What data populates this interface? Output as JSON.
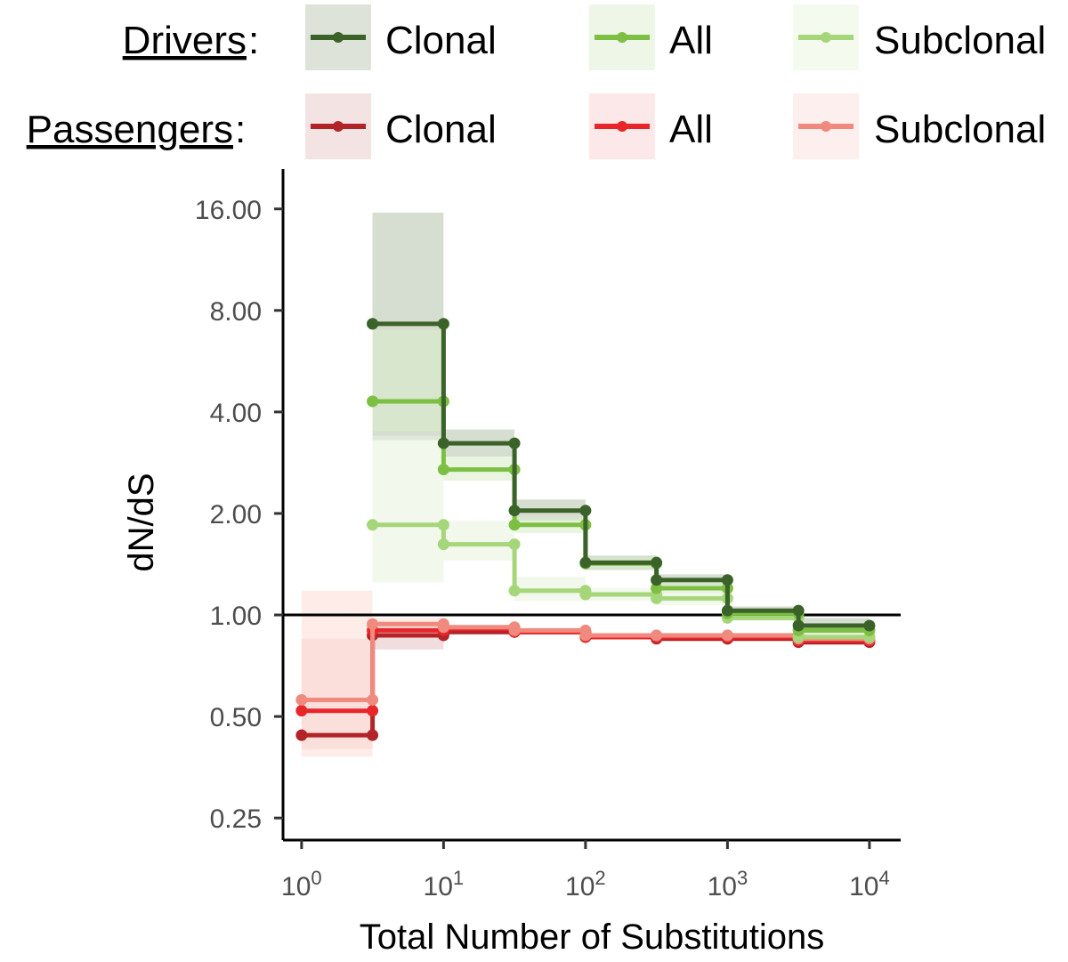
{
  "chart_data": {
    "type": "line",
    "step": true,
    "log_x": true,
    "log_y": true,
    "xlabel": "Total Number of Substitutions",
    "ylabel": "dN/dS",
    "x_ticks": [
      {
        "value": 1,
        "base": "10",
        "exp": "0"
      },
      {
        "value": 10,
        "base": "10",
        "exp": "1"
      },
      {
        "value": 100,
        "base": "10",
        "exp": "2"
      },
      {
        "value": 1000,
        "base": "10",
        "exp": "3"
      },
      {
        "value": 10000,
        "base": "10",
        "exp": "4"
      }
    ],
    "y_ticks": [
      {
        "value": 0.25,
        "label": "0.25"
      },
      {
        "value": 0.5,
        "label": "0.50"
      },
      {
        "value": 1,
        "label": "1.00"
      },
      {
        "value": 2,
        "label": "2.00"
      },
      {
        "value": 4,
        "label": "4.00"
      },
      {
        "value": 8,
        "label": "8.00"
      },
      {
        "value": 16,
        "label": "16.00"
      }
    ],
    "xlim": [
      0.74,
      16600
    ],
    "ylim": [
      0.215,
      21
    ],
    "reference_line_y": 1.0,
    "legend": {
      "drivers_title": "Drivers",
      "passengers_title": "Passengers",
      "colon": ":",
      "columns": [
        "Clonal",
        "All",
        "Subclonal"
      ]
    },
    "series": [
      {
        "name": "Drivers Clonal",
        "group": "Drivers",
        "subset": "Clonal",
        "color": "#3b6329",
        "band_color": "#b5c2ac",
        "points": [
          [
            3.16,
            7.3
          ],
          [
            10,
            7.3
          ],
          [
            10,
            3.23
          ],
          [
            31.6,
            3.23
          ],
          [
            31.6,
            2.04
          ],
          [
            100,
            2.04
          ],
          [
            100,
            1.43
          ],
          [
            316,
            1.43
          ],
          [
            316,
            1.27
          ],
          [
            1000,
            1.27
          ],
          [
            1000,
            1.03
          ],
          [
            3162,
            1.03
          ],
          [
            3162,
            0.93
          ],
          [
            10000,
            0.93
          ]
        ],
        "bands": [
          [
            3.16,
            10,
            3.3,
            15.6
          ],
          [
            10,
            31.6,
            2.95,
            3.55
          ],
          [
            31.6,
            100,
            1.9,
            2.2
          ],
          [
            100,
            316,
            1.36,
            1.5
          ],
          [
            316,
            1000,
            1.22,
            1.32
          ],
          [
            1000,
            3162,
            1.0,
            1.06
          ],
          [
            3162,
            10000,
            0.88,
            0.98
          ]
        ]
      },
      {
        "name": "Drivers All",
        "group": "Drivers",
        "subset": "All",
        "color": "#7cbf42",
        "band_color": "#d9ecc9",
        "points": [
          [
            3.16,
            4.3
          ],
          [
            10,
            4.3
          ],
          [
            10,
            2.7
          ],
          [
            31.6,
            2.7
          ],
          [
            31.6,
            1.85
          ],
          [
            100,
            1.85
          ],
          [
            100,
            1.42
          ],
          [
            316,
            1.42
          ],
          [
            316,
            1.2
          ],
          [
            1000,
            1.2
          ],
          [
            1000,
            1.01
          ],
          [
            3162,
            1.01
          ],
          [
            3162,
            0.9
          ],
          [
            10000,
            0.9
          ]
        ],
        "bands": [
          [
            3.16,
            10,
            3.5,
            7.0
          ],
          [
            10,
            31.6,
            2.5,
            2.95
          ],
          [
            31.6,
            100,
            1.75,
            1.95
          ],
          [
            100,
            316,
            1.37,
            1.48
          ],
          [
            316,
            1000,
            1.16,
            1.25
          ],
          [
            1000,
            3162,
            0.98,
            1.04
          ],
          [
            3162,
            10000,
            0.87,
            0.94
          ]
        ]
      },
      {
        "name": "Drivers Subclonal",
        "group": "Drivers",
        "subset": "Subclonal",
        "color": "#a6d67a",
        "band_color": "#e8f3dc",
        "points": [
          [
            3.16,
            1.85
          ],
          [
            10,
            1.85
          ],
          [
            10,
            1.62
          ],
          [
            31.6,
            1.62
          ],
          [
            31.6,
            1.18
          ],
          [
            100,
            1.18
          ],
          [
            100,
            1.15
          ],
          [
            316,
            1.15
          ],
          [
            316,
            1.12
          ],
          [
            1000,
            1.12
          ],
          [
            1000,
            0.98
          ],
          [
            3162,
            0.98
          ],
          [
            3162,
            0.86
          ],
          [
            10000,
            0.86
          ]
        ],
        "bands": [
          [
            3.16,
            10,
            1.25,
            3.4
          ],
          [
            10,
            31.6,
            1.45,
            1.9
          ],
          [
            31.6,
            100,
            1.1,
            1.3
          ],
          [
            100,
            316,
            1.1,
            1.2
          ],
          [
            316,
            1000,
            1.07,
            1.17
          ],
          [
            1000,
            3162,
            0.96,
            1.02
          ],
          [
            3162,
            10000,
            0.84,
            0.9
          ]
        ]
      },
      {
        "name": "Passengers Clonal",
        "group": "Passengers",
        "subset": "Clonal",
        "color": "#b22427",
        "band_color": "#e6c1c1",
        "points": [
          [
            1,
            0.44
          ],
          [
            3.16,
            0.44
          ],
          [
            3.16,
            0.87
          ],
          [
            10,
            0.87
          ],
          [
            10,
            0.89
          ],
          [
            31.6,
            0.89
          ],
          [
            31.6,
            0.89
          ],
          [
            100,
            0.89
          ],
          [
            100,
            0.86
          ],
          [
            316,
            0.86
          ],
          [
            316,
            0.85
          ],
          [
            1000,
            0.85
          ],
          [
            1000,
            0.85
          ],
          [
            3162,
            0.85
          ],
          [
            3162,
            0.83
          ],
          [
            10000,
            0.83
          ]
        ],
        "bands": [
          [
            3.16,
            10,
            0.79,
            0.94
          ]
        ]
      },
      {
        "name": "Passengers All",
        "group": "Passengers",
        "subset": "All",
        "color": "#e8262a",
        "band_color": "#f8cccc",
        "points": [
          [
            1,
            0.52
          ],
          [
            3.16,
            0.52
          ],
          [
            3.16,
            0.9
          ],
          [
            10,
            0.9
          ],
          [
            10,
            0.91
          ],
          [
            31.6,
            0.91
          ],
          [
            31.6,
            0.89
          ],
          [
            100,
            0.89
          ],
          [
            100,
            0.86
          ],
          [
            316,
            0.86
          ],
          [
            316,
            0.86
          ],
          [
            1000,
            0.86
          ],
          [
            1000,
            0.86
          ],
          [
            3162,
            0.86
          ],
          [
            3162,
            0.84
          ],
          [
            10000,
            0.84
          ]
        ],
        "bands": [
          [
            1,
            3.16,
            0.4,
            0.85
          ]
        ]
      },
      {
        "name": "Passengers Subclonal",
        "group": "Passengers",
        "subset": "Subclonal",
        "color": "#f08a7e",
        "band_color": "#fbdcd6",
        "points": [
          [
            1,
            0.56
          ],
          [
            3.16,
            0.56
          ],
          [
            3.16,
            0.94
          ],
          [
            10,
            0.94
          ],
          [
            10,
            0.92
          ],
          [
            31.6,
            0.92
          ],
          [
            31.6,
            0.9
          ],
          [
            100,
            0.9
          ],
          [
            100,
            0.87
          ],
          [
            316,
            0.87
          ],
          [
            316,
            0.87
          ],
          [
            1000,
            0.87
          ],
          [
            1000,
            0.87
          ],
          [
            3162,
            0.87
          ],
          [
            3162,
            0.85
          ],
          [
            10000,
            0.85
          ]
        ],
        "bands": [
          [
            1,
            3.16,
            0.38,
            1.18
          ],
          [
            3.16,
            10,
            0.85,
            0.98
          ]
        ]
      }
    ]
  }
}
